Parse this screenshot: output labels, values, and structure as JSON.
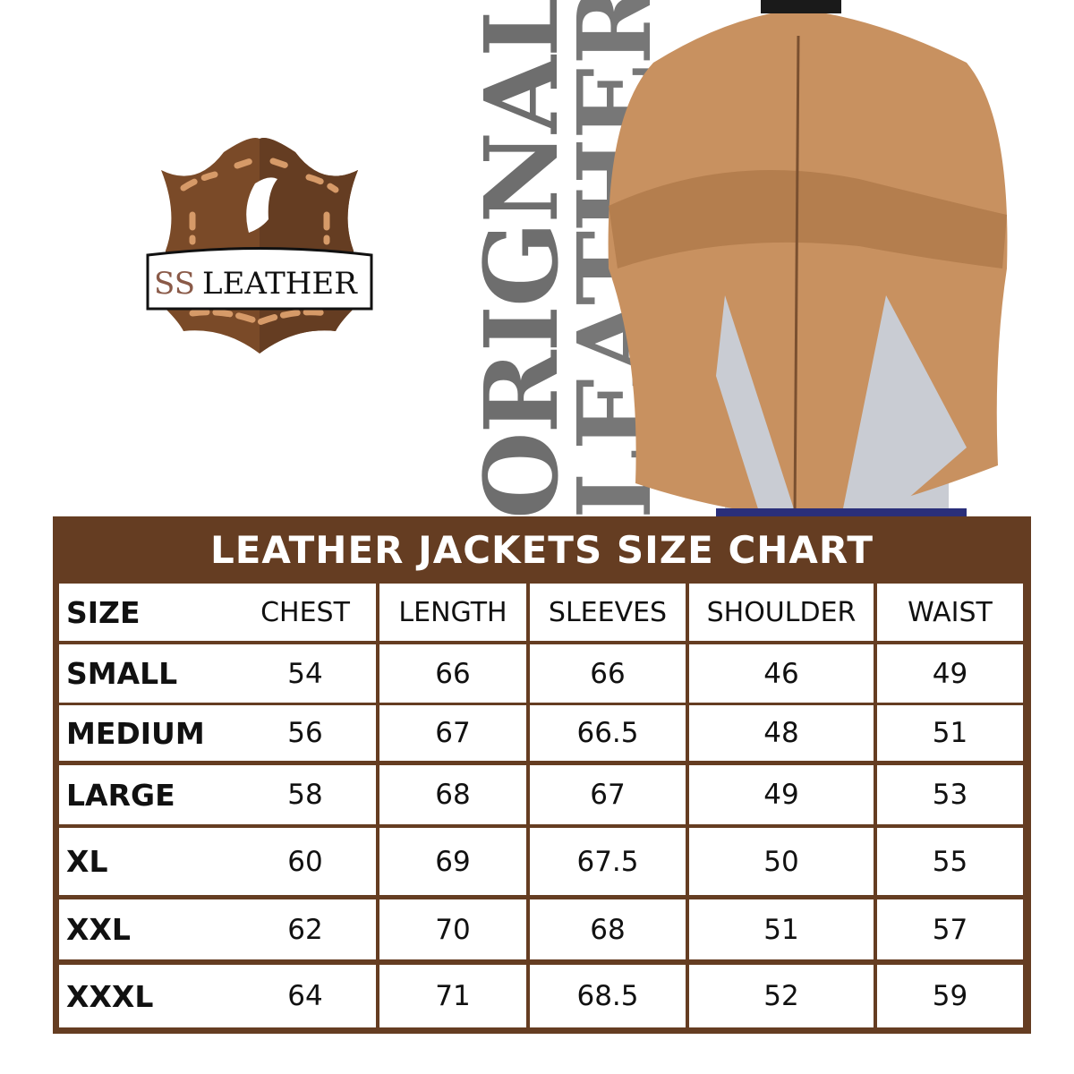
{
  "brand": {
    "logo_text": "SS LEATHER",
    "colors": {
      "brown_dark": "#653d22",
      "brown_mid": "#8a5630",
      "stitch": "#d69a68"
    }
  },
  "vertical_text": [
    "ORIGNAL",
    "LEATHER"
  ],
  "size_chart": {
    "title": "LEATHER JACKETS SIZE CHART",
    "headers": [
      "SIZE",
      "CHEST",
      "LENGTH",
      "SLEEVES",
      "SHOULDER",
      "WAIST"
    ],
    "rows": [
      [
        "SMALL",
        "54",
        "66",
        "66",
        "46",
        "49"
      ],
      [
        "MEDIUM",
        "56",
        "67",
        "66.5",
        "48",
        "51"
      ],
      [
        "LARGE",
        "58",
        "68",
        "67",
        "49",
        "53"
      ],
      [
        "XL",
        "60",
        "69",
        "67.5",
        "50",
        "55"
      ],
      [
        "XXL",
        "62",
        "70",
        "68",
        "51",
        "57"
      ],
      [
        "XXXL",
        "64",
        "71",
        "68.5",
        "52",
        "59"
      ]
    ]
  }
}
